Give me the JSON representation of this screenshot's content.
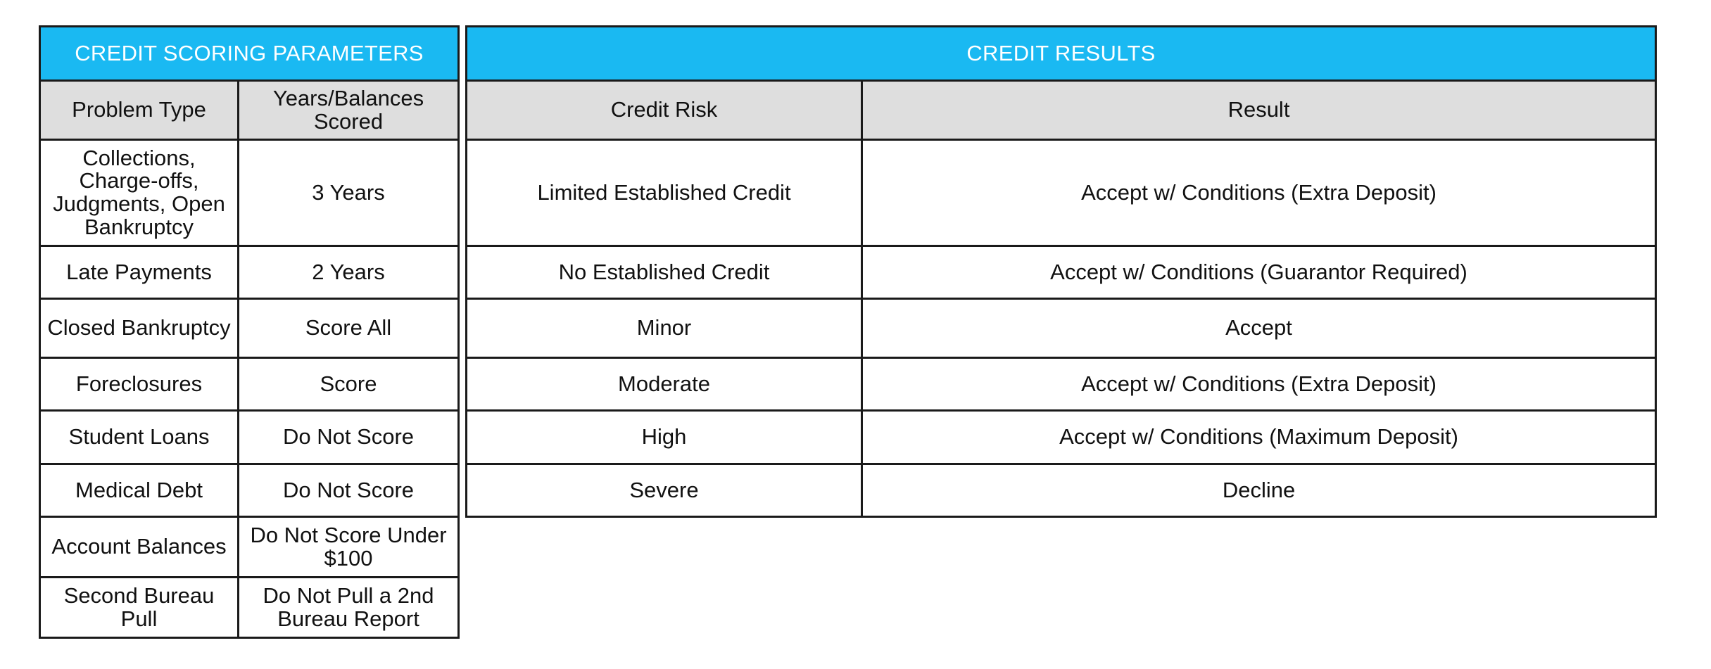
{
  "parameters": {
    "title": "CREDIT SCORING PARAMETERS",
    "columns": [
      "Problem Type",
      "Years/Balances Scored"
    ],
    "rows": [
      [
        "Collections, Charge-offs, Judgments, Open Bankruptcy",
        "3 Years"
      ],
      [
        "Late Payments",
        "2 Years"
      ],
      [
        "Closed Bankruptcy",
        "Score All"
      ],
      [
        "Foreclosures",
        "Score"
      ],
      [
        "Student Loans",
        "Do Not Score"
      ],
      [
        "Medical Debt",
        "Do Not Score"
      ],
      [
        "Account Balances",
        "Do Not Score Under $100"
      ],
      [
        "Second Bureau Pull",
        "Do Not Pull a 2nd Bureau Report"
      ]
    ]
  },
  "results": {
    "title": "CREDIT RESULTS",
    "columns": [
      "Credit Risk",
      "Result"
    ],
    "rows": [
      [
        "Limited Established Credit",
        "Accept w/ Conditions (Extra Deposit)"
      ],
      [
        "No Established Credit",
        "Accept w/ Conditions (Guarantor Required)"
      ],
      [
        "Minor",
        "Accept"
      ],
      [
        "Moderate",
        "Accept w/ Conditions (Extra Deposit)"
      ],
      [
        "High",
        "Accept w/ Conditions (Maximum Deposit)"
      ],
      [
        "Severe",
        "Decline"
      ]
    ]
  }
}
